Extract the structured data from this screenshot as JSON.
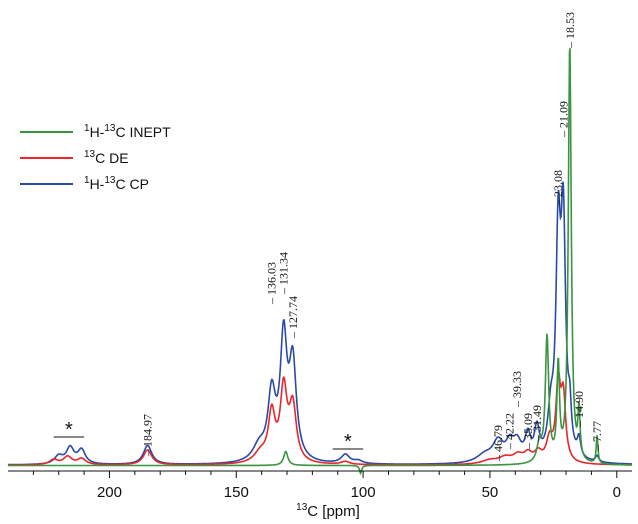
{
  "chart_data": {
    "type": "line",
    "title": "",
    "xlabel": {
      "sup": "13",
      "text": "C [ppm]"
    },
    "ylabel": "",
    "xlim": [
      240,
      -6
    ],
    "x_reversed": true,
    "y_axis_visible": false,
    "grid": false,
    "legend_position": "left",
    "xticks": [
      200,
      150,
      100,
      50,
      0
    ],
    "tick_labels": [
      "200",
      "150",
      "100",
      "50",
      "0"
    ],
    "legend": [
      {
        "series": "inept",
        "sup1": "1",
        "mid": "H-",
        "sup2": "13",
        "tail": "C INEPT"
      },
      {
        "series": "de",
        "sup1": "",
        "mid": "",
        "sup2": "13",
        "tail": "C DE"
      },
      {
        "series": "cp",
        "sup1": "1",
        "mid": "H-",
        "sup2": "13",
        "tail": "C CP"
      }
    ],
    "series": [
      {
        "key": "inept",
        "name": "1H-13C INEPT",
        "color": "#3a9440",
        "baseline": 0.5,
        "peaks": [
          [
            18.53,
            420,
            0.7
          ],
          [
            23.08,
            95,
            0.6
          ],
          [
            27.5,
            125,
            0.8
          ],
          [
            30.5,
            18,
            1.2
          ],
          [
            14.9,
            48,
            0.5
          ],
          [
            7.77,
            28,
            0.4
          ],
          [
            130.5,
            14,
            1.0
          ],
          [
            101.0,
            -8,
            0.5
          ]
        ]
      },
      {
        "key": "de",
        "name": "13C DE",
        "color": "#e8262b",
        "baseline": 0.8,
        "peaks": [
          [
            127.74,
            55,
            1.7
          ],
          [
            131.34,
            72,
            1.6
          ],
          [
            136.03,
            48,
            1.6
          ],
          [
            140.5,
            10,
            3.0
          ],
          [
            184.97,
            15,
            2.0
          ],
          [
            211.0,
            6,
            2.0
          ],
          [
            216.5,
            8,
            2.0
          ],
          [
            222.0,
            5,
            2.0
          ],
          [
            21.09,
            62,
            1.1
          ],
          [
            23.08,
            75,
            1.1
          ],
          [
            26.5,
            22,
            1.5
          ],
          [
            31.0,
            10,
            1.8
          ],
          [
            35.0,
            9,
            2.0
          ],
          [
            39.0,
            8,
            2.5
          ],
          [
            44.0,
            6,
            3.0
          ],
          [
            50.0,
            4,
            4.0
          ],
          [
            107.0,
            3,
            2.0
          ]
        ]
      },
      {
        "key": "cp",
        "name": "1H-13C CP",
        "color": "#2a4aa8",
        "baseline": 1.0,
        "peaks": [
          [
            21.09,
            225,
            1.1
          ],
          [
            23.08,
            210,
            1.1
          ],
          [
            18.53,
            35,
            0.7
          ],
          [
            26.0,
            40,
            1.4
          ],
          [
            31.49,
            30,
            1.2
          ],
          [
            35.09,
            24,
            1.3
          ],
          [
            39.33,
            18,
            2.0
          ],
          [
            42.22,
            16,
            1.8
          ],
          [
            46.79,
            20,
            2.5
          ],
          [
            52.0,
            8,
            4.0
          ],
          [
            14.9,
            18,
            0.8
          ],
          [
            7.77,
            6,
            0.8
          ],
          [
            127.74,
            95,
            1.7
          ],
          [
            131.34,
            118,
            1.6
          ],
          [
            136.03,
            65,
            1.8
          ],
          [
            141.0,
            15,
            3.0
          ],
          [
            184.97,
            19,
            2.0
          ],
          [
            211.0,
            14,
            1.8
          ],
          [
            215.5,
            16,
            1.8
          ],
          [
            220.0,
            8,
            2.0
          ],
          [
            107.0,
            9,
            2.0
          ],
          [
            102.0,
            3,
            2.0
          ]
        ]
      }
    ],
    "peak_labels": [
      {
        "ppm": 18.53,
        "text": "18.53"
      },
      {
        "ppm": 21.09,
        "text": "21.09"
      },
      {
        "ppm": 23.08,
        "text": "23.08"
      },
      {
        "ppm": 131.34,
        "text": "131.34"
      },
      {
        "ppm": 127.74,
        "text": "127.74"
      },
      {
        "ppm": 136.03,
        "text": "136.03"
      },
      {
        "ppm": 184.97,
        "text": "184.97"
      },
      {
        "ppm": 46.79,
        "text": "46.79"
      },
      {
        "ppm": 42.22,
        "text": "42.22"
      },
      {
        "ppm": 39.33,
        "text": "39.33"
      },
      {
        "ppm": 35.09,
        "text": "35.09"
      },
      {
        "ppm": 31.49,
        "text": "31.49"
      },
      {
        "ppm": 14.9,
        "text": "14.90"
      },
      {
        "ppm": 7.77,
        "text": "7.77"
      }
    ],
    "annotations": [
      {
        "text": "*",
        "meaning": "spinning sideband",
        "ppm_from": 222,
        "ppm_to": 210
      },
      {
        "text": "*",
        "meaning": "spinning sideband",
        "ppm_from": 112,
        "ppm_to": 100
      }
    ]
  }
}
